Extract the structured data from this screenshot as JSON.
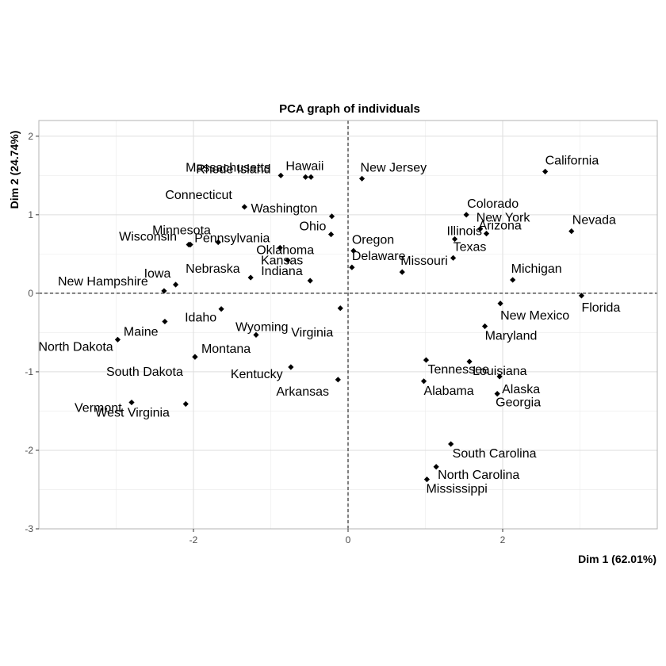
{
  "chart_data": {
    "type": "scatter",
    "title": "PCA graph of individuals",
    "xlabel": "Dim 1 (62.01%)",
    "ylabel": "Dim 2 (24.74%)",
    "xlim": [
      -4.0,
      4.0
    ],
    "ylim": [
      -3.0,
      2.2
    ],
    "x_ticks": [
      -2,
      0,
      2
    ],
    "y_ticks": [
      -3,
      -2,
      -1,
      0,
      1,
      2
    ],
    "x_tick_labels": [
      "-2",
      "0",
      "2"
    ],
    "y_tick_labels": [
      "-3",
      "-2",
      "-1",
      "0",
      "1",
      "2"
    ],
    "grid": true,
    "reference_lines": {
      "x": 0,
      "y": 0,
      "style": "dashed"
    },
    "point_color": "#000000",
    "points": [
      {
        "label": "Hawaii",
        "x": -0.55,
        "y": 1.48
      },
      {
        "label": "Rhode Island",
        "x": -0.48,
        "y": 1.48
      },
      {
        "label": "Massachusetts",
        "x": -0.87,
        "y": 1.5
      },
      {
        "label": "New Jersey",
        "x": 0.18,
        "y": 1.46
      },
      {
        "label": "California",
        "x": 2.55,
        "y": 1.55
      },
      {
        "label": "Connecticut",
        "x": -1.34,
        "y": 1.1
      },
      {
        "label": "Washington",
        "x": -0.21,
        "y": 0.98
      },
      {
        "label": "Ohio",
        "x": -0.22,
        "y": 0.75
      },
      {
        "label": "Colorado",
        "x": 1.53,
        "y": 1.0
      },
      {
        "label": "New York",
        "x": 1.71,
        "y": 0.82
      },
      {
        "label": "Arizona",
        "x": 1.79,
        "y": 0.76
      },
      {
        "label": "Illinois",
        "x": 1.38,
        "y": 0.69
      },
      {
        "label": "Nevada",
        "x": 2.89,
        "y": 0.79
      },
      {
        "label": "Wisconsin",
        "x": -2.06,
        "y": 0.62
      },
      {
        "label": "Minnesota",
        "x": -2.04,
        "y": 0.62
      },
      {
        "label": "Pennsylvania",
        "x": -1.68,
        "y": 0.65
      },
      {
        "label": "Oklahoma",
        "x": -0.88,
        "y": 0.58
      },
      {
        "label": "Kansas",
        "x": -0.78,
        "y": 0.42
      },
      {
        "label": "Nebraska",
        "x": -1.26,
        "y": 0.2
      },
      {
        "label": "Indiana",
        "x": -0.49,
        "y": 0.16
      },
      {
        "label": "Oregon",
        "x": 0.07,
        "y": 0.54
      },
      {
        "label": "Delaware",
        "x": 0.05,
        "y": 0.33
      },
      {
        "label": "Missouri",
        "x": 0.7,
        "y": 0.27
      },
      {
        "label": "Texas",
        "x": 1.36,
        "y": 0.45
      },
      {
        "label": "Michigan",
        "x": 2.13,
        "y": 0.17
      },
      {
        "label": "Iowa",
        "x": -2.23,
        "y": 0.11
      },
      {
        "label": "New Hampshire",
        "x": -2.38,
        "y": 0.03
      },
      {
        "label": "Florida",
        "x": 3.02,
        "y": -0.03
      },
      {
        "label": "New Mexico",
        "x": 1.97,
        "y": -0.13
      },
      {
        "label": "Idaho",
        "x": -1.64,
        "y": -0.2
      },
      {
        "label": "Virginia",
        "x": -0.1,
        "y": -0.19
      },
      {
        "label": "Maine",
        "x": -2.37,
        "y": -0.36
      },
      {
        "label": "Wyoming",
        "x": -1.19,
        "y": -0.53
      },
      {
        "label": "Maryland",
        "x": 1.77,
        "y": -0.42
      },
      {
        "label": "North Dakota",
        "x": -2.98,
        "y": -0.59
      },
      {
        "label": "Montana",
        "x": -1.98,
        "y": -0.81
      },
      {
        "label": "South Dakota",
        "x": -1.98,
        "y": -0.81
      },
      {
        "label": "Tennessee",
        "x": 1.01,
        "y": -0.85
      },
      {
        "label": "Louisiana",
        "x": 1.57,
        "y": -0.87
      },
      {
        "label": "Alaska",
        "x": 1.96,
        "y": -1.06
      },
      {
        "label": "Kentucky",
        "x": -0.74,
        "y": -0.94
      },
      {
        "label": "Arkansas",
        "x": -0.13,
        "y": -1.1
      },
      {
        "label": "Alabama",
        "x": 0.98,
        "y": -1.12
      },
      {
        "label": "Georgia",
        "x": 1.93,
        "y": -1.28
      },
      {
        "label": "Vermont",
        "x": -2.8,
        "y": -1.39
      },
      {
        "label": "West Virginia",
        "x": -2.1,
        "y": -1.41
      },
      {
        "label": "South Carolina",
        "x": 1.33,
        "y": -1.92
      },
      {
        "label": "North Carolina",
        "x": 1.14,
        "y": -2.21
      },
      {
        "label": "Mississippi",
        "x": 1.02,
        "y": -2.37
      }
    ]
  }
}
